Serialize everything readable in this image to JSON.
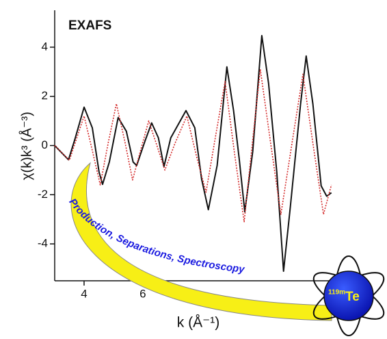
{
  "chart_data": {
    "type": "line",
    "title": "EXAFS",
    "x_label": "k (Å⁻¹)",
    "y_label": "χ(k)k³ (Å⁻³)",
    "banner": "Production, Separations, Spectroscopy",
    "isotope_mass": "119m",
    "isotope_symbol": "Te",
    "xlim": [
      3,
      12.45
    ],
    "ylim": [
      -5.5,
      5.5
    ],
    "xticks": [
      4,
      6
    ],
    "yticks": [
      -4,
      -2,
      0,
      2,
      4
    ],
    "series": [
      {
        "color": "#111111",
        "style": "solid",
        "x": [
          3.0,
          3.47,
          3.7,
          4.0,
          4.28,
          4.51,
          4.63,
          4.86,
          5.16,
          5.44,
          5.67,
          5.79,
          6.07,
          6.3,
          6.53,
          6.72,
          6.95,
          7.47,
          7.77,
          8.0,
          8.23,
          8.53,
          8.86,
          9.09,
          9.28,
          9.47,
          9.74,
          10.05,
          10.28,
          10.56,
          10.79,
          11.02,
          11.37,
          11.56,
          11.79,
          12.07,
          12.26,
          12.42
        ],
        "values": [
          0,
          -0.58,
          0.31,
          1.56,
          0.72,
          -1.08,
          -1.58,
          -0.67,
          1.14,
          0.58,
          -0.67,
          -0.81,
          0.17,
          0.92,
          0.31,
          -0.86,
          0.31,
          1.42,
          0.72,
          -1.36,
          -2.61,
          -0.81,
          3.2,
          1.42,
          -0.53,
          -2.69,
          -0.25,
          4.47,
          2.53,
          -1.08,
          -5.11,
          -2.5,
          1.69,
          3.64,
          1.69,
          -1.64,
          -2.06,
          -1.92
        ]
      },
      {
        "color": "#d42a2a",
        "style": "dotted",
        "x": [
          3.0,
          3.25,
          3.5,
          3.75,
          4.0,
          4.28,
          4.55,
          4.82,
          5.1,
          5.38,
          5.65,
          5.92,
          6.2,
          6.48,
          6.75,
          7.1,
          7.5,
          7.82,
          8.15,
          8.48,
          8.8,
          9.12,
          9.45,
          9.72,
          10.0,
          10.35,
          10.7,
          11.08,
          11.45,
          11.8,
          12.15,
          12.42
        ],
        "values": [
          0,
          -0.3,
          -0.6,
          0.3,
          1.2,
          -0.2,
          -1.6,
          0.1,
          1.7,
          0.2,
          -1.4,
          -0.2,
          1.0,
          0.0,
          -1.0,
          0.1,
          1.2,
          -0.4,
          -1.9,
          0.4,
          2.6,
          -0.3,
          -3.1,
          0.0,
          3.1,
          0.1,
          -2.8,
          0.1,
          2.9,
          0.0,
          -2.8,
          -1.6
        ]
      }
    ]
  }
}
